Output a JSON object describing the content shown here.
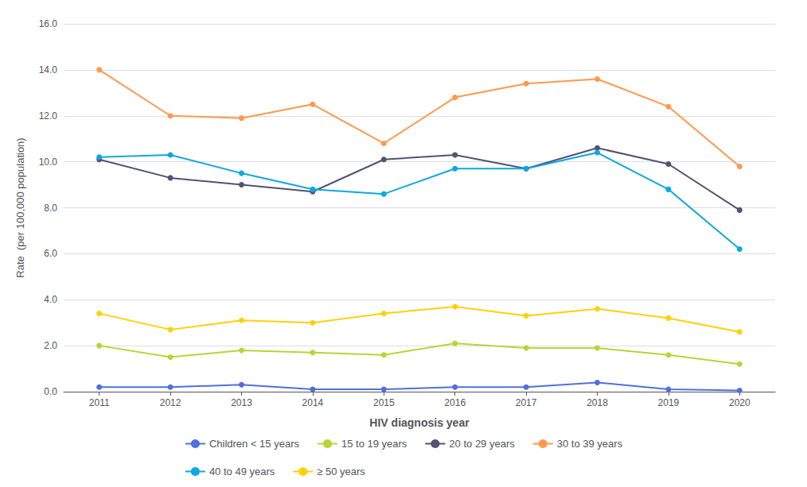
{
  "chart_data": {
    "type": "line",
    "x": [
      2011,
      2012,
      2013,
      2014,
      2015,
      2016,
      2017,
      2018,
      2019,
      2020
    ],
    "xlim": [
      2010.5,
      2020.5
    ],
    "xticks": [
      2011,
      2012,
      2013,
      2014,
      2015,
      2016,
      2017,
      2018,
      2019,
      2020
    ],
    "xlabel": "HIV diagnosis year",
    "ylabel": "Rate  (per 100,000 population)",
    "ylim": [
      0.0,
      16.0
    ],
    "yticks": [
      {
        "value": 0,
        "label": "0.0"
      },
      {
        "value": 2,
        "label": "2.0"
      },
      {
        "value": 4,
        "label": "4.0"
      },
      {
        "value": 6,
        "label": "6.0"
      },
      {
        "value": 8,
        "label": "8.0"
      },
      {
        "value": 10,
        "label": "10.0"
      },
      {
        "value": 12,
        "label": "12.0"
      },
      {
        "value": 14,
        "label": "14.0"
      },
      {
        "value": 16,
        "label": "16.0"
      }
    ],
    "grid": true,
    "legend": "bottom",
    "marker": "circle",
    "series": [
      {
        "name": "Children < 15 years",
        "values": [
          0.2,
          0.2,
          0.3,
          0.1,
          0.1,
          0.2,
          0.2,
          0.4,
          0.1,
          0.05
        ]
      },
      {
        "name": "15 to 19 years",
        "values": [
          2.0,
          1.5,
          1.8,
          1.7,
          1.6,
          2.1,
          1.9,
          1.9,
          1.6,
          1.2
        ]
      },
      {
        "name": "20 to 29 years",
        "values": [
          10.1,
          9.3,
          9.0,
          8.7,
          10.1,
          10.3,
          9.7,
          10.6,
          9.9,
          7.9
        ]
      },
      {
        "name": "30 to 39 years",
        "values": [
          14.0,
          12.0,
          11.9,
          12.5,
          10.8,
          12.8,
          13.4,
          13.6,
          12.4,
          9.8
        ]
      },
      {
        "name": "40 to 49 years",
        "values": [
          10.2,
          10.3,
          9.5,
          8.8,
          8.6,
          9.7,
          9.7,
          10.4,
          8.8,
          6.2
        ]
      },
      {
        "name": "≥ 50 years",
        "values": [
          3.4,
          2.7,
          3.1,
          3.0,
          3.4,
          3.7,
          3.3,
          3.6,
          3.2,
          2.6
        ]
      }
    ]
  }
}
